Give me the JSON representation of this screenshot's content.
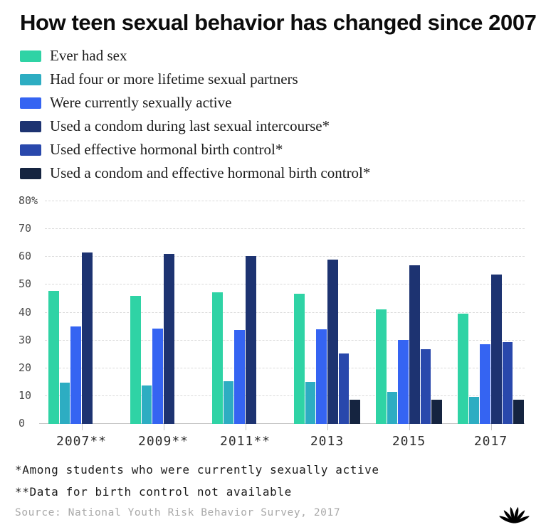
{
  "page": {
    "title": "How teen sexual behavior has changed since 2007"
  },
  "chart_data": {
    "type": "bar",
    "title": "How teen sexual behavior has changed since 2007",
    "categories": [
      "2007**",
      "2009**",
      "2011**",
      "2013",
      "2015",
      "2017"
    ],
    "series": [
      {
        "name": "Ever had sex",
        "color": "#2fd3a5",
        "values": [
          47.8,
          46.0,
          47.4,
          46.8,
          41.2,
          39.5
        ]
      },
      {
        "name": "Had four or more lifetime sexual partners",
        "color": "#2dadc2",
        "values": [
          14.9,
          13.8,
          15.3,
          15.0,
          11.5,
          9.7
        ]
      },
      {
        "name": "Were currently sexually active",
        "color": "#3564f2",
        "values": [
          35.0,
          34.2,
          33.7,
          34.0,
          30.1,
          28.7
        ]
      },
      {
        "name": "Used a condom during last sexual intercourse*",
        "color": "#1d3371",
        "values": [
          61.5,
          61.1,
          60.2,
          59.1,
          56.9,
          53.8
        ]
      },
      {
        "name": "Used effective hormonal birth control*",
        "color": "#2948ac",
        "values": [
          null,
          null,
          null,
          25.3,
          26.8,
          29.4
        ]
      },
      {
        "name": "Used a condom and effective hormonal birth control*",
        "color": "#152440",
        "values": [
          null,
          null,
          null,
          8.8,
          8.8,
          8.8
        ]
      }
    ],
    "ylim": [
      0,
      80
    ],
    "y_ticks": [
      0,
      10,
      20,
      30,
      40,
      50,
      60,
      70,
      80
    ],
    "y_top_tick_label": "80%",
    "grid": "horizontal-dashed",
    "legend_position": "top-left",
    "xlabel": "",
    "ylabel": ""
  },
  "footnotes": {
    "note1": "*Among students who were currently sexually active",
    "note2": "**Data for birth control not available",
    "source": "Source: National Youth Risk Behavior Survey, 2017"
  },
  "branding": {
    "logo": "nbc-peacock-logo",
    "logo_color": "#000000"
  }
}
